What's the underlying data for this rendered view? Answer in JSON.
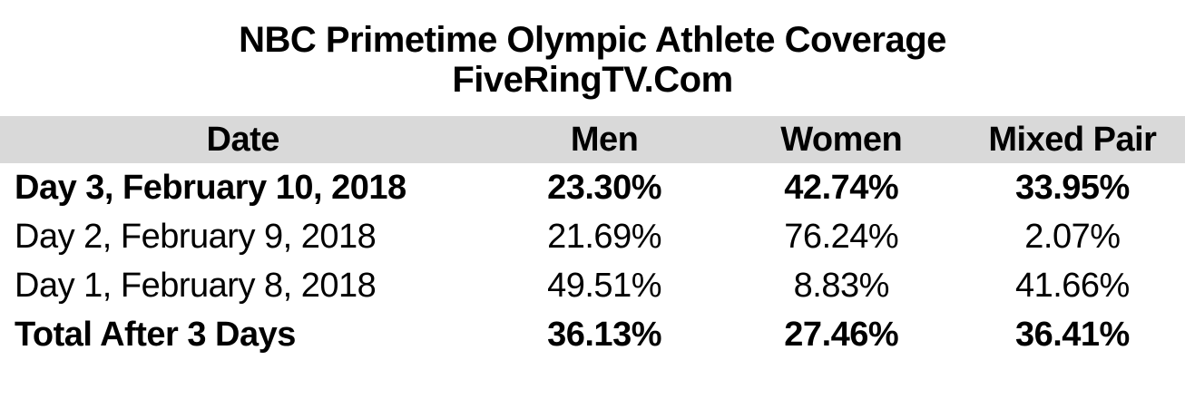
{
  "title": {
    "line1": "NBC Primetime Olympic Athlete Coverage",
    "line2": "FiveRingTV.Com"
  },
  "table": {
    "columns": {
      "date": "Date",
      "men": "Men",
      "women": "Women",
      "mixed_pair": "Mixed Pair"
    },
    "rows": [
      {
        "date": "Day 3, February 10, 2018",
        "men": "23.30%",
        "women": "42.74%",
        "mixed_pair": "33.95%",
        "emphasis": "bold"
      },
      {
        "date": "Day 2, February 9, 2018",
        "men": "21.69%",
        "women": "76.24%",
        "mixed_pair": "2.07%",
        "emphasis": "normal"
      },
      {
        "date": "Day 1, February 8, 2018",
        "men": "49.51%",
        "women": "8.83%",
        "mixed_pair": "41.66%",
        "emphasis": "normal"
      },
      {
        "date": "Total After 3 Days",
        "men": "36.13%",
        "women": "27.46%",
        "mixed_pair": "36.41%",
        "emphasis": "bold"
      }
    ]
  },
  "colors": {
    "header_bg": "#d9d9d9",
    "text": "#000000",
    "background": "#ffffff"
  },
  "chart_data": {
    "type": "table",
    "title": "NBC Primetime Olympic Athlete Coverage",
    "subtitle": "FiveRingTV.Com",
    "columns": [
      "Date",
      "Men",
      "Women",
      "Mixed Pair"
    ],
    "categories": [
      "Day 3, February 10, 2018",
      "Day 2, February 9, 2018",
      "Day 1, February 8, 2018",
      "Total After 3 Days"
    ],
    "series": [
      {
        "name": "Men",
        "values": [
          23.3,
          21.69,
          49.51,
          36.13
        ]
      },
      {
        "name": "Women",
        "values": [
          42.74,
          76.24,
          8.83,
          27.46
        ]
      },
      {
        "name": "Mixed Pair",
        "values": [
          33.95,
          2.07,
          41.66,
          36.41
        ]
      }
    ],
    "unit": "%",
    "layout_hints": {
      "header_background": "#d9d9d9",
      "bold_rows": [
        0,
        3
      ],
      "date_column_align": "left",
      "value_columns_align": "center"
    }
  }
}
